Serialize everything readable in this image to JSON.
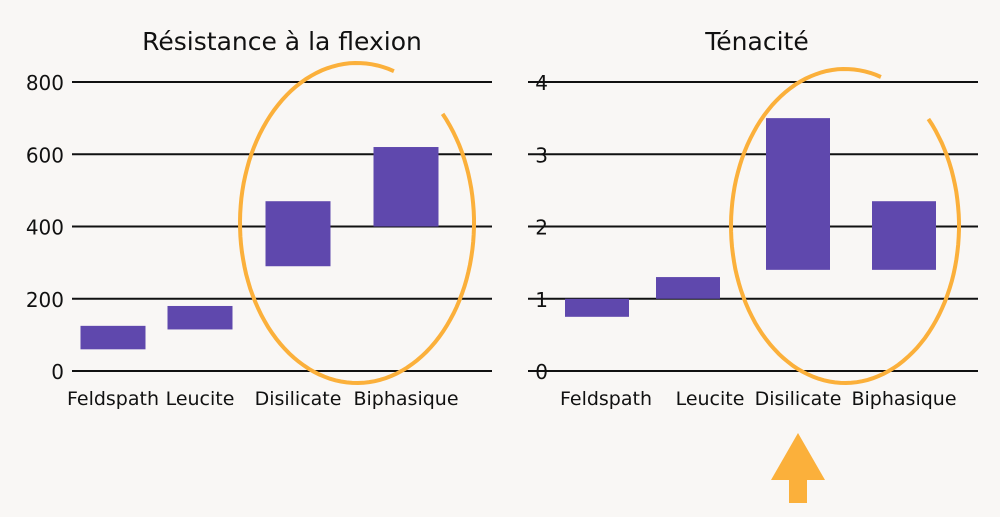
{
  "colors": {
    "bar": "#5f48ad",
    "highlight": "#fbb03b",
    "grid": "#111111",
    "background": "#f9f7f5"
  },
  "chart_data": [
    {
      "type": "bar",
      "subtype": "floating-range",
      "title": "Résistance à la flexion",
      "categories": [
        "Feldspath",
        "Leucite",
        "Disilicate",
        "Biphasique"
      ],
      "ranges": [
        [
          60,
          125
        ],
        [
          115,
          180
        ],
        [
          290,
          470
        ],
        [
          400,
          620
        ]
      ],
      "yticks": [
        0,
        200,
        400,
        600,
        800
      ],
      "ylim": [
        0,
        800
      ],
      "grid": true,
      "highlighted": [
        "Disilicate",
        "Biphasique"
      ]
    },
    {
      "type": "bar",
      "subtype": "floating-range",
      "title": "Ténacité",
      "categories": [
        "Feldspath",
        "Leucite",
        "Disilicate",
        "Biphasique"
      ],
      "ranges": [
        [
          0.75,
          1.0
        ],
        [
          1.0,
          1.3
        ],
        [
          1.4,
          3.5
        ],
        [
          1.4,
          2.35
        ]
      ],
      "yticks": [
        0,
        1,
        2,
        3,
        4
      ],
      "ylim": [
        0,
        4
      ],
      "grid": true,
      "highlighted": [
        "Disilicate",
        "Biphasique"
      ]
    }
  ]
}
